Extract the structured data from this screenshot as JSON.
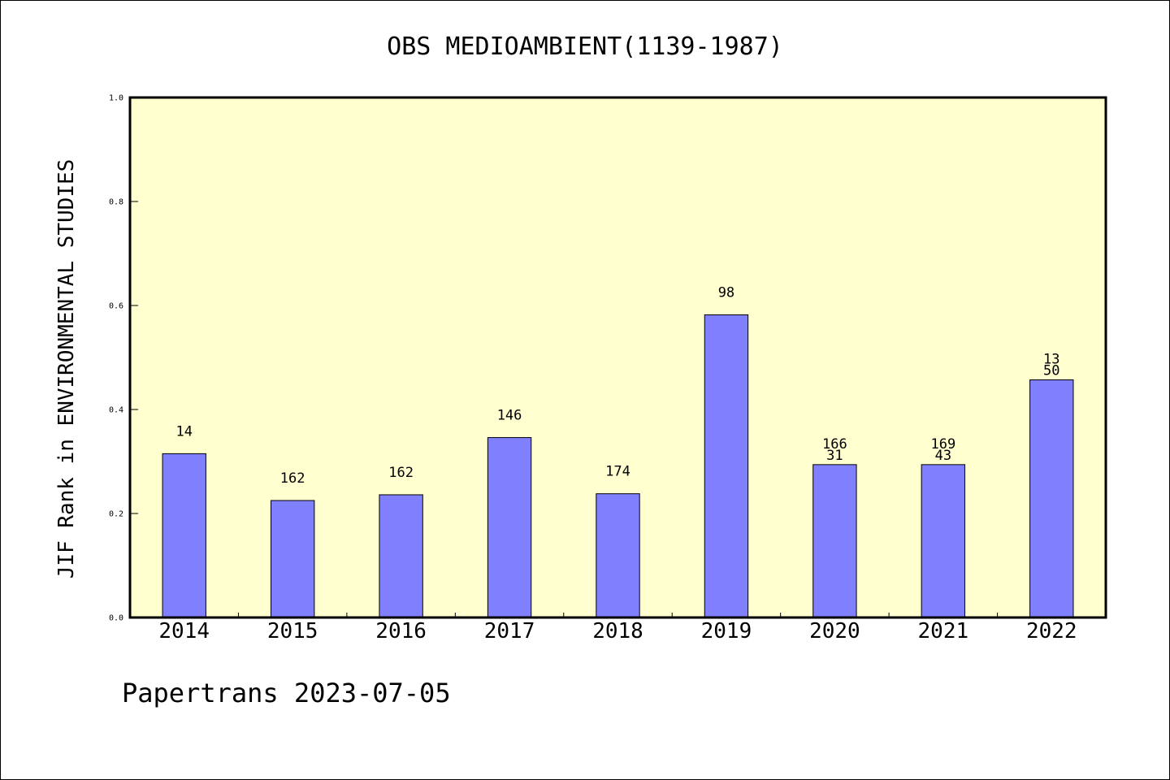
{
  "chart_data": {
    "type": "bar",
    "title": "OBS MEDIOAMBIENT(1139-1987)",
    "xlabel": "",
    "ylabel": "JIF Rank in ENVIRONMENTAL STUDIES",
    "ylim": [
      0,
      1.0
    ],
    "yticks": [
      "0.0",
      "0.2",
      "0.4",
      "0.6",
      "0.8",
      "1.0"
    ],
    "categories": [
      "2014",
      "2015",
      "2016",
      "2017",
      "2018",
      "2019",
      "2020",
      "2021",
      "2022"
    ],
    "values": [
      0.315,
      0.225,
      0.236,
      0.346,
      0.238,
      0.582,
      0.294,
      0.294,
      0.457
    ],
    "annotations": [
      [
        "14"
      ],
      [
        "162"
      ],
      [
        "162"
      ],
      [
        "146"
      ],
      [
        "174"
      ],
      [
        "98"
      ],
      [
        "166",
        "31"
      ],
      [
        "169",
        "43"
      ],
      [
        "13",
        "50"
      ]
    ],
    "grid": false,
    "colors": {
      "plot_background": "#FFFFD0",
      "bar_fill": "#8080FF",
      "bar_stroke": "#000000"
    }
  },
  "footer": {
    "text": "Papertrans 2023-07-05"
  }
}
